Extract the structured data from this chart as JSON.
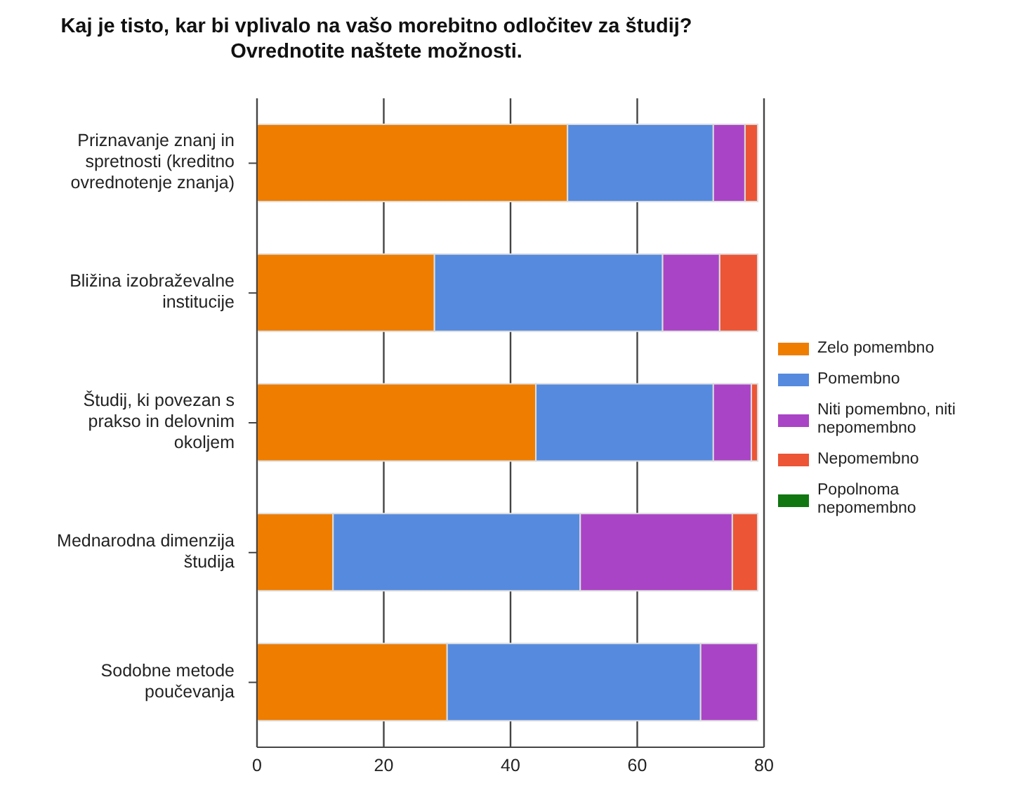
{
  "chart_data": {
    "type": "bar",
    "orientation": "horizontal",
    "stacked": true,
    "title": "Kaj je tisto, kar bi vplivalo na vašo morebitno odločitev za študij? Ovrednotite naštete možnosti.",
    "categories": [
      "Priznavanje znanj in spretnosti (kreditno ovrednotenje znanja)",
      "Bližina izobraževalne institucije",
      "Študij, ki povezan s prakso in delovnim okoljem",
      "Mednarodna dimenzija študija",
      "Sodobne metode poučevanja"
    ],
    "series": [
      {
        "name": "Zelo pomembno",
        "color": "#ee7d00",
        "values": [
          49,
          28,
          44,
          12,
          30
        ]
      },
      {
        "name": "Pomembno",
        "color": "#558ade",
        "values": [
          23,
          36,
          28,
          39,
          40
        ]
      },
      {
        "name": "Niti pomembno, niti nepomembno",
        "color": "#aa44c6",
        "values": [
          5,
          9,
          6,
          24,
          9
        ]
      },
      {
        "name": "Nepomembno",
        "color": "#ec5535",
        "values": [
          2,
          6,
          1,
          4,
          0
        ]
      },
      {
        "name": "Popolnoma nepomembno",
        "color": "#117711",
        "values": [
          0,
          0,
          0,
          0,
          0
        ]
      }
    ],
    "xlim": [
      0,
      80
    ],
    "xticks": [
      0,
      20,
      40,
      60,
      80
    ],
    "grid": "x",
    "legend": "right"
  }
}
